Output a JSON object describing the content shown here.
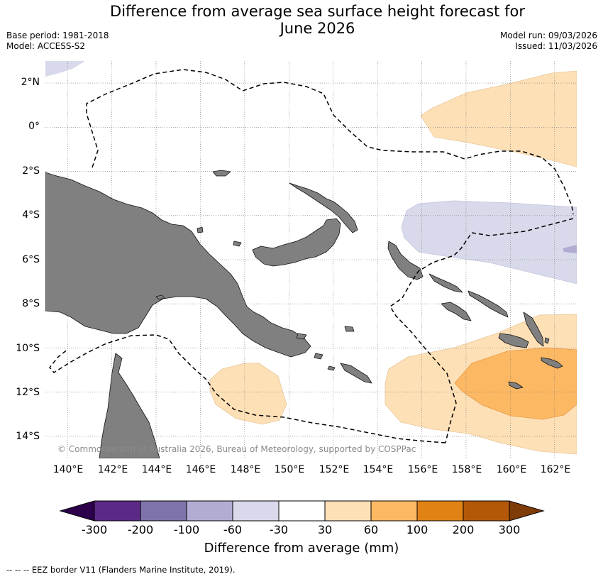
{
  "header": {
    "title_line1": "Difference from average sea surface height forecast for",
    "title_line2": "June 2026",
    "base_period": "Base period: 1981-2018",
    "model": "Model: ACCESS-S2",
    "model_run": "Model run: 09/03/2026",
    "issued": "Issued: 11/03/2026"
  },
  "map": {
    "lat_labels": [
      "2°N",
      "0°",
      "2°S",
      "4°S",
      "6°S",
      "8°S",
      "10°S",
      "12°S",
      "14°S"
    ],
    "lon_labels": [
      "140°E",
      "142°E",
      "144°E",
      "146°E",
      "148°E",
      "150°E",
      "152°E",
      "154°E",
      "156°E",
      "158°E",
      "160°E",
      "162°E"
    ],
    "extent": {
      "lon_min": 139,
      "lon_max": 163,
      "lat_min": -15,
      "lat_max": 3
    },
    "copyright": "© Commonwealth of Australia 2026, Bureau of Meteorology, supported by COSPPac"
  },
  "legend": {
    "tick_labels": [
      "-300",
      "-200",
      "-100",
      "-60",
      "-30",
      "30",
      "60",
      "100",
      "200",
      "300"
    ],
    "colors": [
      "#5b2a86",
      "#8073ac",
      "#b2abd2",
      "#d8daeb",
      "#ffffff",
      "#fee0b6",
      "#fdb863",
      "#e08214",
      "#b35806"
    ],
    "low_extend_color": "#2d004b",
    "high_extend_color": "#7f3b08",
    "label": "Difference from average (mm)"
  },
  "footnote": "--  --  -- EEZ border V11 (Flanders Marine Institute, 2019).",
  "colors": {
    "land": "#808080",
    "eez": "#000000",
    "grid": "#777777"
  }
}
